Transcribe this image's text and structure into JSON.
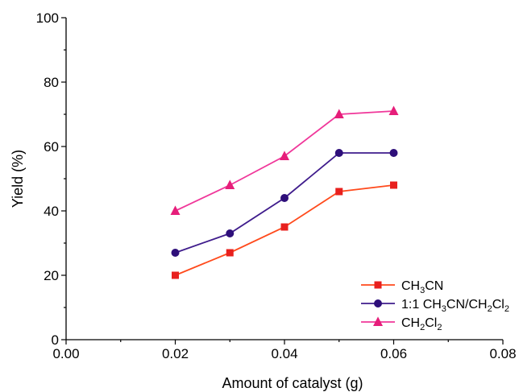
{
  "chart_data": {
    "type": "line",
    "title": "",
    "xlabel": "Amount of catalyst (g)",
    "ylabel": "Yield (%)",
    "xlim": [
      0.0,
      0.08
    ],
    "ylim": [
      0,
      100
    ],
    "x_ticks": [
      "0.00",
      "0.02",
      "0.04",
      "0.06",
      "0.08"
    ],
    "y_ticks": [
      "0",
      "20",
      "40",
      "60",
      "80",
      "100"
    ],
    "x": [
      0.02,
      0.03,
      0.04,
      0.05,
      0.06
    ],
    "grid": false,
    "legend_position": "bottom-right",
    "series": [
      {
        "key": "ch3cn",
        "name": "CH3CN",
        "legend_parts": [
          {
            "t": "CH"
          },
          {
            "t": "3",
            "sub": true
          },
          {
            "t": "CN"
          }
        ],
        "marker": "square",
        "line_color": "#ff4a1c",
        "marker_color": "#e8201e",
        "values": [
          20,
          27,
          35,
          46,
          48
        ]
      },
      {
        "key": "mix",
        "name": "1:1 CH3CN/CH2Cl2",
        "legend_parts": [
          {
            "t": "1:1 CH"
          },
          {
            "t": "3",
            "sub": true
          },
          {
            "t": "CN/CH"
          },
          {
            "t": "2",
            "sub": true
          },
          {
            "t": "Cl"
          },
          {
            "t": "2",
            "sub": true
          }
        ],
        "marker": "circle",
        "line_color": "#3f1c8c",
        "marker_color": "#2e0f7a",
        "values": [
          27,
          33,
          44,
          58,
          58
        ]
      },
      {
        "key": "ch2cl2",
        "name": "CH2Cl2",
        "legend_parts": [
          {
            "t": "CH"
          },
          {
            "t": "2",
            "sub": true
          },
          {
            "t": "Cl"
          },
          {
            "t": "2",
            "sub": true
          }
        ],
        "marker": "triangle",
        "line_color": "#f0379a",
        "marker_color": "#e61e7a",
        "values": [
          40,
          48,
          57,
          70,
          71
        ]
      }
    ]
  }
}
